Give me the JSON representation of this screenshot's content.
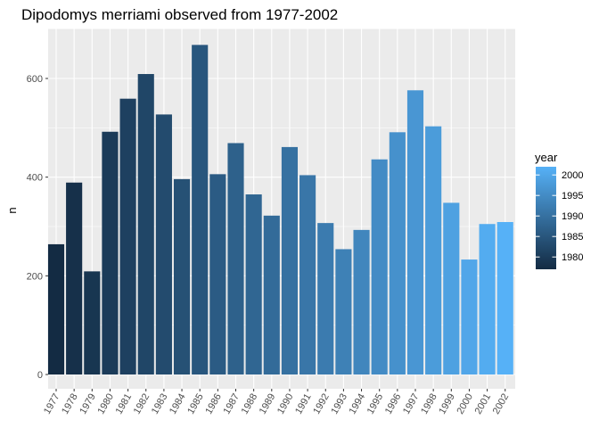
{
  "chart_data": {
    "type": "bar",
    "title": "Dipodomys merriami observed from 1977-2002",
    "xlabel": "",
    "ylabel": "n",
    "ylim": [
      0,
      700
    ],
    "y_ticks": [
      0,
      200,
      400,
      600
    ],
    "grid": true,
    "categories": [
      "1977",
      "1978",
      "1979",
      "1980",
      "1981",
      "1982",
      "1983",
      "1984",
      "1985",
      "1986",
      "1987",
      "1988",
      "1989",
      "1990",
      "1991",
      "1992",
      "1993",
      "1994",
      "1995",
      "1996",
      "1997",
      "1998",
      "1999",
      "2000",
      "2001",
      "2002"
    ],
    "values": [
      264,
      389,
      209,
      492,
      559,
      609,
      527,
      396,
      668,
      406,
      469,
      365,
      322,
      461,
      404,
      307,
      254,
      293,
      436,
      491,
      576,
      503,
      348,
      233,
      305,
      309
    ],
    "legend": {
      "title": "year",
      "placement": "right",
      "ticks": [
        1980,
        1985,
        1990,
        1995,
        2000
      ],
      "range": [
        1977,
        2002
      ],
      "color_low": "#132B43",
      "color_high": "#56B1F7"
    },
    "colors": {
      "panel_background": "#EBEBEB",
      "grid_major": "#FFFFFF",
      "tick_color": "#333333"
    }
  }
}
